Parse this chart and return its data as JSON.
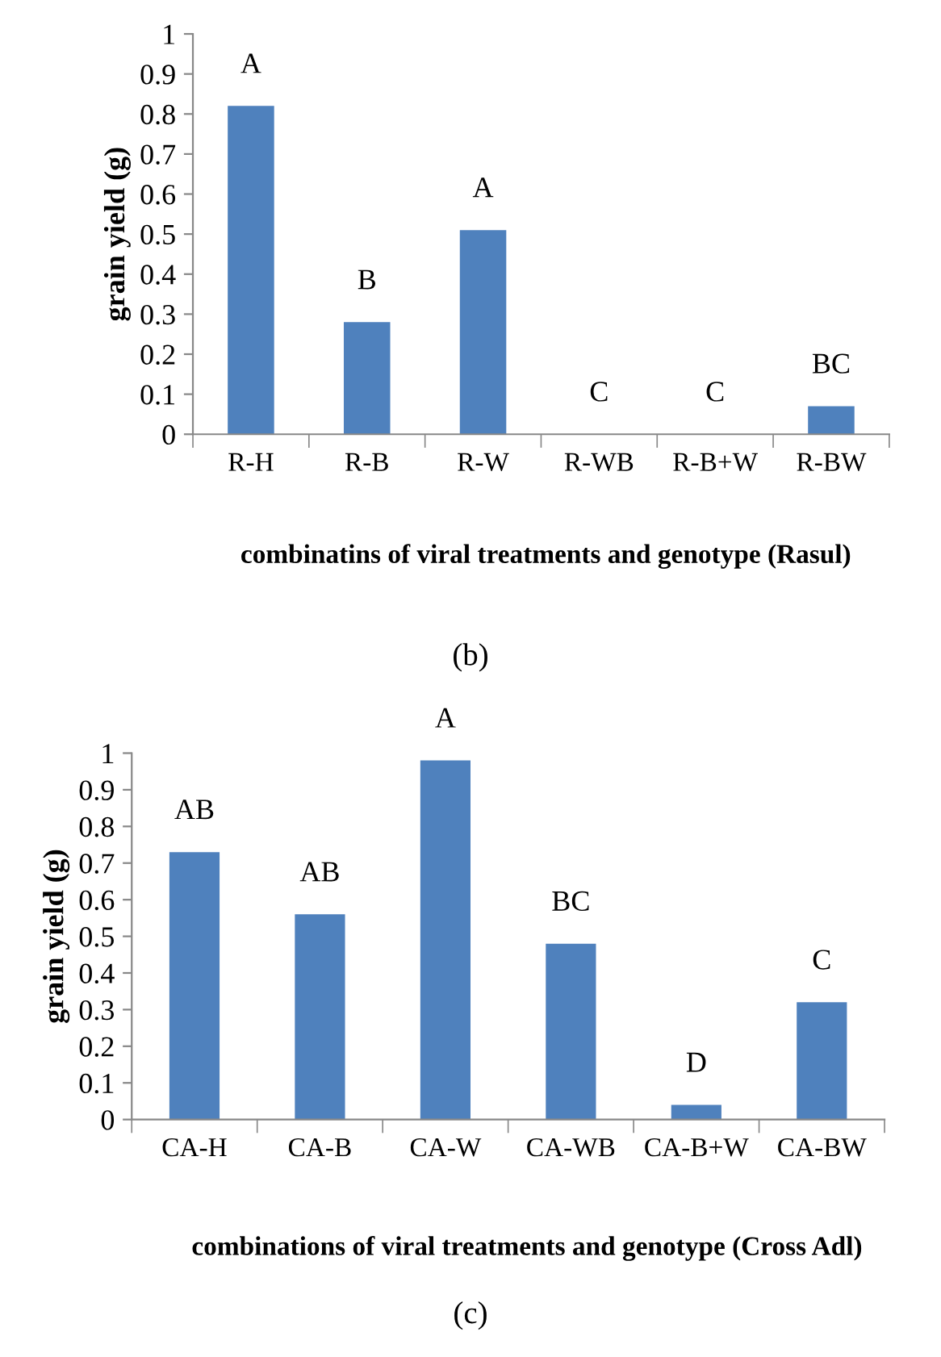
{
  "chart_data": [
    {
      "type": "bar",
      "categories": [
        "R-H",
        "R-B",
        "R-W",
        "R-WB",
        "R-B+W",
        "R-BW"
      ],
      "values": [
        0.82,
        0.28,
        0.51,
        0,
        0,
        0.07
      ],
      "color": "#4f81bd",
      "ylabel": "grain yield (g)",
      "xlabel": "combinatins of viral treatments and genotype (Rasul)",
      "ylim": [
        0,
        1
      ],
      "yticks": [
        0,
        0.1,
        0.2,
        0.3,
        0.4,
        0.5,
        0.6,
        0.7,
        0.8,
        0.9,
        1
      ],
      "grid": false,
      "legend": false,
      "annotations": [
        {
          "text": "A",
          "x": "R-H",
          "y": 0.82
        },
        {
          "text": "B",
          "x": "R-B",
          "y": 0.28
        },
        {
          "text": "A",
          "x": "R-W",
          "y": 0.51
        },
        {
          "text": "C",
          "x": "R-WB",
          "y": 0
        },
        {
          "text": "C",
          "x": "R-B+W",
          "y": 0
        },
        {
          "text": "BC",
          "x": "R-BW",
          "y": 0.07
        },
        "(b)"
      ]
    },
    {
      "type": "bar",
      "categories": [
        "CA-H",
        "CA-B",
        "CA-W",
        "CA-WB",
        "CA-B+W",
        "CA-BW"
      ],
      "values": [
        0.73,
        0.56,
        0.98,
        0.48,
        0.04,
        0.32
      ],
      "color": "#4f81bd",
      "ylabel": "grain yield (g)",
      "xlabel": "combinations of viral treatments and genotype (Cross Adl)",
      "ylim": [
        0,
        1
      ],
      "yticks": [
        0,
        0.1,
        0.2,
        0.3,
        0.4,
        0.5,
        0.6,
        0.7,
        0.8,
        0.9,
        1
      ],
      "grid": false,
      "legend": false,
      "annotations": [
        {
          "text": "AB",
          "x": "CA-H",
          "y": 0.73
        },
        {
          "text": "AB",
          "x": "CA-B",
          "y": 0.56
        },
        {
          "text": "A",
          "x": "CA-W",
          "y": 0.98
        },
        {
          "text": "BC",
          "x": "CA-WB",
          "y": 0.48
        },
        {
          "text": "D",
          "x": "CA-B+W",
          "y": 0.04
        },
        {
          "text": "C",
          "x": "CA-BW",
          "y": 0.32
        },
        "(c)"
      ]
    }
  ]
}
